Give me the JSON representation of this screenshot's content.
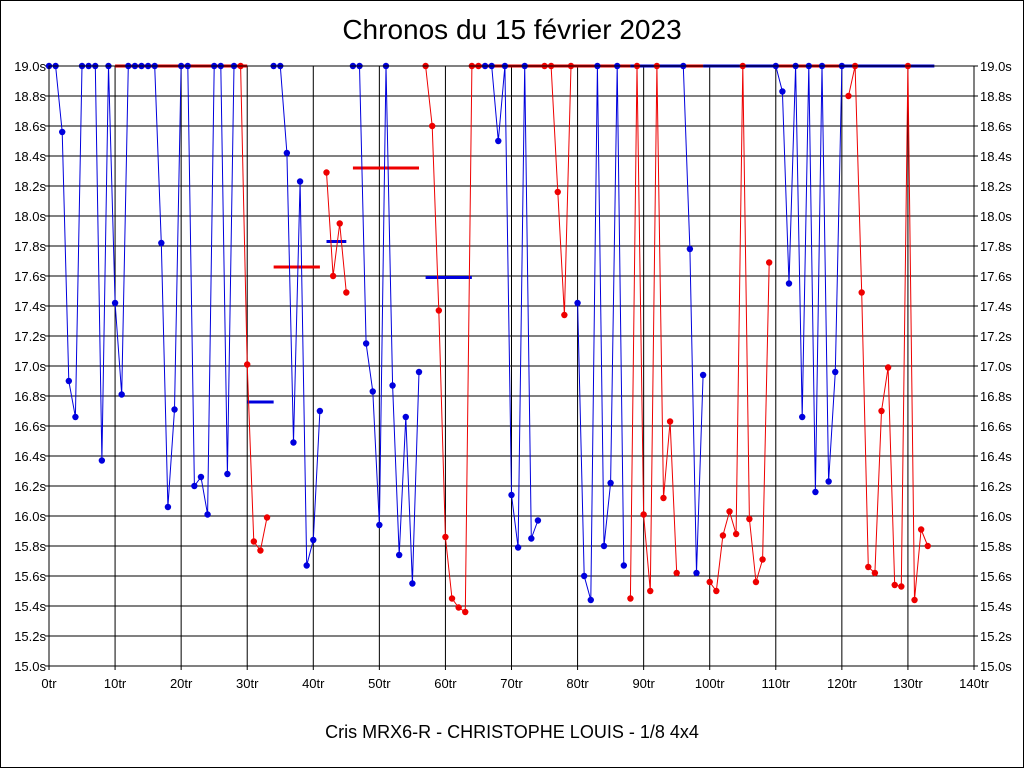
{
  "chart_data": {
    "type": "line",
    "title": "Chronos du 15 février 2023",
    "xlabel": "Cris MRX6-R - CHRISTOPHE LOUIS - 1/8 4x4",
    "ylabel": "",
    "xlim": [
      0,
      140
    ],
    "ylim": [
      15.0,
      19.0
    ],
    "grid": true,
    "x_ticks": [
      {
        "v": 0,
        "label": "0tr"
      },
      {
        "v": 10,
        "label": "10tr"
      },
      {
        "v": 20,
        "label": "20tr"
      },
      {
        "v": 30,
        "label": "30tr"
      },
      {
        "v": 40,
        "label": "40tr"
      },
      {
        "v": 50,
        "label": "50tr"
      },
      {
        "v": 60,
        "label": "60tr"
      },
      {
        "v": 70,
        "label": "70tr"
      },
      {
        "v": 80,
        "label": "80tr"
      },
      {
        "v": 90,
        "label": "90tr"
      },
      {
        "v": 100,
        "label": "100tr"
      },
      {
        "v": 110,
        "label": "110tr"
      },
      {
        "v": 120,
        "label": "120tr"
      },
      {
        "v": 130,
        "label": "130tr"
      },
      {
        "v": 140,
        "label": "140tr"
      }
    ],
    "y_ticks": [
      {
        "v": 15.0,
        "label": "15.0s"
      },
      {
        "v": 15.2,
        "label": "15.2s"
      },
      {
        "v": 15.4,
        "label": "15.4s"
      },
      {
        "v": 15.6,
        "label": "15.6s"
      },
      {
        "v": 15.8,
        "label": "15.8s"
      },
      {
        "v": 16.0,
        "label": "16.0s"
      },
      {
        "v": 16.2,
        "label": "16.2s"
      },
      {
        "v": 16.4,
        "label": "16.4s"
      },
      {
        "v": 16.6,
        "label": "16.6s"
      },
      {
        "v": 16.8,
        "label": "16.8s"
      },
      {
        "v": 17.0,
        "label": "17.0s"
      },
      {
        "v": 17.2,
        "label": "17.2s"
      },
      {
        "v": 17.4,
        "label": "17.4s"
      },
      {
        "v": 17.6,
        "label": "17.6s"
      },
      {
        "v": 17.8,
        "label": "17.8s"
      },
      {
        "v": 18.0,
        "label": "18.0s"
      },
      {
        "v": 18.2,
        "label": "18.2s"
      },
      {
        "v": 18.4,
        "label": "18.4s"
      },
      {
        "v": 18.6,
        "label": "18.6s"
      },
      {
        "v": 18.8,
        "label": "18.8s"
      },
      {
        "v": 19.0,
        "label": "19.0s"
      }
    ],
    "colors": {
      "blue": "#0000dd",
      "red": "#ee0000"
    },
    "series": [
      {
        "color": "blue",
        "points": [
          [
            0,
            19.0
          ],
          [
            1,
            19.0
          ],
          [
            2,
            18.56
          ],
          [
            3,
            16.9
          ],
          [
            4,
            16.66
          ],
          [
            5,
            19.0
          ],
          [
            6,
            19.0
          ],
          [
            7,
            19.0
          ],
          [
            8,
            16.37
          ],
          [
            9,
            19.0
          ],
          [
            10,
            17.42
          ],
          [
            11,
            16.81
          ],
          [
            12,
            19.0
          ],
          [
            13,
            19.0
          ],
          [
            14,
            19.0
          ],
          [
            15,
            19.0
          ],
          [
            16,
            19.0
          ],
          [
            17,
            17.82
          ],
          [
            18,
            16.06
          ],
          [
            19,
            16.71
          ],
          [
            20,
            19.0
          ],
          [
            21,
            19.0
          ],
          [
            22,
            16.2
          ],
          [
            23,
            16.26
          ],
          [
            24,
            16.01
          ],
          [
            25,
            19.0
          ],
          [
            26,
            19.0
          ],
          [
            27,
            16.28
          ],
          [
            28,
            19.0
          ]
        ]
      },
      {
        "color": "red",
        "points": [
          [
            29,
            19.0
          ],
          [
            30,
            17.01
          ],
          [
            31,
            15.83
          ],
          [
            32,
            15.77
          ],
          [
            33,
            15.99
          ]
        ]
      },
      {
        "color": "blue",
        "points": [
          [
            34,
            19.0
          ],
          [
            35,
            19.0
          ],
          [
            36,
            18.42
          ],
          [
            37,
            16.49
          ],
          [
            38,
            18.23
          ],
          [
            39,
            15.67
          ],
          [
            40,
            15.84
          ],
          [
            41,
            16.7
          ]
        ]
      },
      {
        "color": "red",
        "points": [
          [
            42,
            18.29
          ],
          [
            43,
            17.6
          ],
          [
            44,
            17.95
          ],
          [
            45,
            17.49
          ]
        ]
      },
      {
        "color": "blue",
        "points": [
          [
            46,
            19.0
          ],
          [
            47,
            19.0
          ],
          [
            48,
            17.15
          ],
          [
            49,
            16.83
          ],
          [
            50,
            15.94
          ],
          [
            51,
            19.0
          ],
          [
            52,
            16.87
          ],
          [
            53,
            15.74
          ],
          [
            54,
            16.66
          ],
          [
            55,
            15.55
          ],
          [
            56,
            16.96
          ]
        ]
      },
      {
        "color": "red",
        "points": [
          [
            57,
            19.0
          ],
          [
            58,
            18.6
          ],
          [
            59,
            17.37
          ],
          [
            60,
            15.86
          ],
          [
            61,
            15.45
          ],
          [
            62,
            15.39
          ],
          [
            63,
            15.36
          ],
          [
            64,
            19.0
          ],
          [
            65,
            19.0
          ]
        ]
      },
      {
        "color": "blue",
        "points": [
          [
            66,
            19.0
          ],
          [
            67,
            19.0
          ],
          [
            68,
            18.5
          ],
          [
            69,
            19.0
          ],
          [
            70,
            16.14
          ],
          [
            71,
            15.79
          ],
          [
            72,
            19.0
          ],
          [
            73,
            15.85
          ],
          [
            74,
            15.97
          ]
        ]
      },
      {
        "color": "red",
        "points": [
          [
            75,
            19.0
          ],
          [
            76,
            19.0
          ],
          [
            77,
            18.16
          ],
          [
            78,
            17.34
          ],
          [
            79,
            19.0
          ]
        ]
      },
      {
        "color": "blue",
        "points": [
          [
            80,
            17.42
          ],
          [
            81,
            15.6
          ],
          [
            82,
            15.44
          ],
          [
            83,
            19.0
          ],
          [
            84,
            15.8
          ],
          [
            85,
            16.22
          ],
          [
            86,
            19.0
          ],
          [
            87,
            15.67
          ]
        ]
      },
      {
        "color": "red",
        "points": [
          [
            88,
            15.45
          ],
          [
            89,
            19.0
          ],
          [
            90,
            16.01
          ],
          [
            91,
            15.5
          ],
          [
            92,
            19.0
          ],
          [
            93,
            16.12
          ],
          [
            94,
            16.63
          ],
          [
            95,
            15.62
          ]
        ]
      },
      {
        "color": "blue",
        "points": [
          [
            96,
            19.0
          ],
          [
            97,
            17.78
          ],
          [
            98,
            15.62
          ],
          [
            99,
            16.94
          ]
        ]
      },
      {
        "color": "red",
        "points": [
          [
            100,
            15.56
          ],
          [
            101,
            15.5
          ],
          [
            102,
            15.87
          ],
          [
            103,
            16.03
          ],
          [
            104,
            15.88
          ],
          [
            105,
            19.0
          ],
          [
            106,
            15.98
          ],
          [
            107,
            15.56
          ],
          [
            108,
            15.71
          ],
          [
            109,
            17.69
          ]
        ]
      },
      {
        "color": "blue",
        "points": [
          [
            110,
            19.0
          ],
          [
            111,
            18.83
          ],
          [
            112,
            17.55
          ],
          [
            113,
            19.0
          ],
          [
            114,
            16.66
          ],
          [
            115,
            19.0
          ],
          [
            116,
            16.16
          ],
          [
            117,
            19.0
          ],
          [
            118,
            16.23
          ],
          [
            119,
            16.96
          ],
          [
            120,
            19.0
          ]
        ]
      },
      {
        "color": "red",
        "points": [
          [
            121,
            18.8
          ],
          [
            122,
            19.0
          ],
          [
            123,
            17.49
          ],
          [
            124,
            15.66
          ],
          [
            125,
            15.62
          ],
          [
            126,
            16.7
          ],
          [
            127,
            16.99
          ],
          [
            128,
            15.54
          ],
          [
            129,
            15.53
          ],
          [
            130,
            19.0
          ],
          [
            131,
            15.44
          ],
          [
            132,
            15.91
          ],
          [
            133,
            15.8
          ]
        ]
      }
    ],
    "averages": [
      {
        "color": "red",
        "y": 19.0,
        "x": [
          10,
          30
        ]
      },
      {
        "color": "blue",
        "y": 16.76,
        "x": [
          30,
          34
        ]
      },
      {
        "color": "red",
        "y": 17.66,
        "x": [
          34,
          41
        ]
      },
      {
        "color": "blue",
        "y": 17.83,
        "x": [
          42,
          45
        ]
      },
      {
        "color": "red",
        "y": 18.32,
        "x": [
          46,
          56
        ]
      },
      {
        "color": "blue",
        "y": 17.59,
        "x": [
          57,
          64
        ]
      },
      {
        "color": "red",
        "y": 19.0,
        "x": [
          64,
          88
        ]
      },
      {
        "color": "blue",
        "y": 19.0,
        "x": [
          88,
          96
        ]
      },
      {
        "color": "red",
        "y": 19.0,
        "x": [
          96,
          99
        ]
      },
      {
        "color": "blue",
        "y": 19.0,
        "x": [
          99,
          110
        ]
      },
      {
        "color": "red",
        "y": 19.0,
        "x": [
          110,
          120
        ]
      },
      {
        "color": "blue",
        "y": 19.0,
        "x": [
          120,
          134
        ]
      }
    ]
  }
}
